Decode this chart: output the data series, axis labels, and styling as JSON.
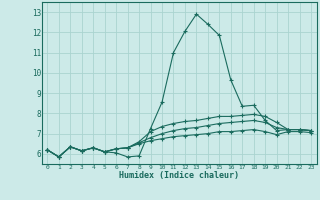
{
  "title": "",
  "xlabel": "Humidex (Indice chaleur)",
  "ylabel": "",
  "background_color": "#cceae8",
  "grid_color": "#aad4d0",
  "line_color": "#1a6b5e",
  "text_color": "#1a6b5e",
  "xlim": [
    -0.5,
    23.5
  ],
  "ylim": [
    5.5,
    13.5
  ],
  "xticks": [
    0,
    1,
    2,
    3,
    4,
    5,
    6,
    7,
    8,
    9,
    10,
    11,
    12,
    13,
    14,
    15,
    16,
    17,
    18,
    19,
    20,
    21,
    22,
    23
  ],
  "yticks": [
    6,
    7,
    8,
    9,
    10,
    11,
    12,
    13
  ],
  "series": [
    [
      6.2,
      5.85,
      6.35,
      6.15,
      6.3,
      6.1,
      6.05,
      5.85,
      5.9,
      7.25,
      8.55,
      11.0,
      12.05,
      12.9,
      12.4,
      11.85,
      9.65,
      8.35,
      8.4,
      7.65,
      7.15,
      7.2,
      7.2,
      7.15
    ],
    [
      6.2,
      5.85,
      6.35,
      6.15,
      6.3,
      6.1,
      6.25,
      6.3,
      6.6,
      7.1,
      7.35,
      7.5,
      7.6,
      7.65,
      7.75,
      7.85,
      7.85,
      7.9,
      7.95,
      7.85,
      7.55,
      7.2,
      7.2,
      7.15
    ],
    [
      6.2,
      5.85,
      6.35,
      6.15,
      6.3,
      6.1,
      6.25,
      6.3,
      6.55,
      6.8,
      7.0,
      7.15,
      7.25,
      7.3,
      7.4,
      7.5,
      7.55,
      7.6,
      7.65,
      7.55,
      7.3,
      7.2,
      7.2,
      7.15
    ],
    [
      6.2,
      5.85,
      6.35,
      6.15,
      6.3,
      6.1,
      6.25,
      6.3,
      6.5,
      6.65,
      6.75,
      6.85,
      6.9,
      6.95,
      7.0,
      7.1,
      7.1,
      7.15,
      7.2,
      7.1,
      6.95,
      7.1,
      7.1,
      7.05
    ]
  ]
}
